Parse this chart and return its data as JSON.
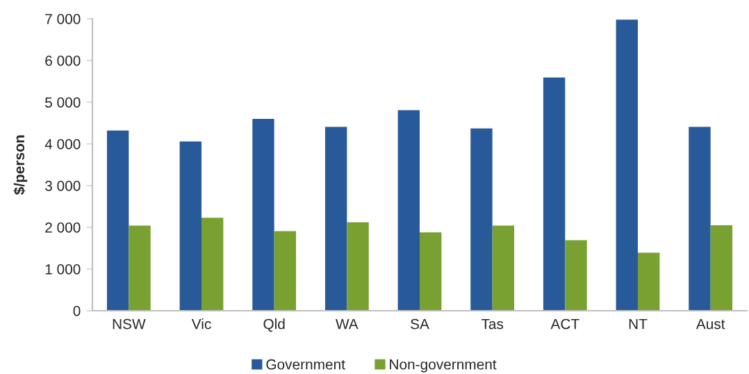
{
  "chart_data": {
    "type": "bar",
    "ylabel": "$/person",
    "categories": [
      "NSW",
      "Vic",
      "Qld",
      "WA",
      "SA",
      "Tas",
      "ACT",
      "NT",
      "Aust"
    ],
    "series": [
      {
        "name": "Government",
        "color": "#285a99",
        "values": [
          4320,
          4060,
          4600,
          4410,
          4810,
          4370,
          5590,
          6980,
          4410
        ]
      },
      {
        "name": "Non-government",
        "color": "#78a132",
        "values": [
          2040,
          2230,
          1910,
          2120,
          1880,
          2040,
          1690,
          1390,
          2050
        ]
      }
    ],
    "ylim": [
      0,
      7000
    ],
    "yticks": [
      {
        "value": 0,
        "label": "0"
      },
      {
        "value": 1000,
        "label": "1 000"
      },
      {
        "value": 2000,
        "label": "2 000"
      },
      {
        "value": 3000,
        "label": "3 000"
      },
      {
        "value": 4000,
        "label": "4 000"
      },
      {
        "value": 5000,
        "label": "5 000"
      },
      {
        "value": 6000,
        "label": "6 000"
      },
      {
        "value": 7000,
        "label": "7 000"
      }
    ],
    "grid": false,
    "legend": "bottom"
  }
}
